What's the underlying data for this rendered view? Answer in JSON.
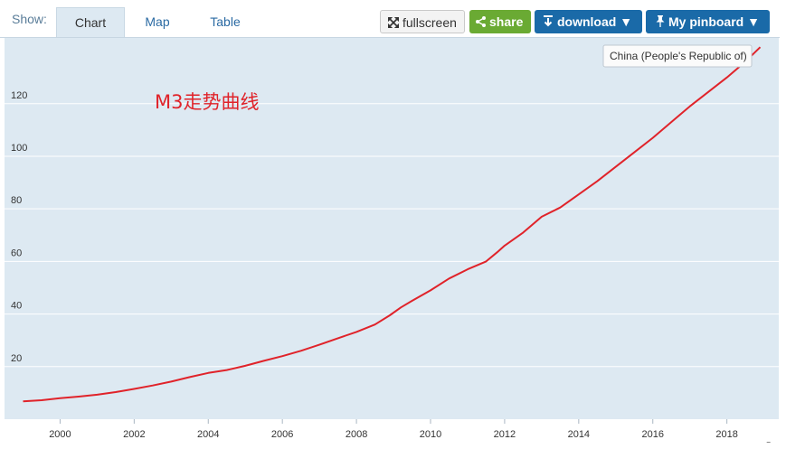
{
  "toolbar": {
    "show_label": "Show:",
    "tabs": [
      {
        "label": "Chart",
        "active": true
      },
      {
        "label": "Map",
        "active": false
      },
      {
        "label": "Table",
        "active": false
      }
    ],
    "fullscreen_label": "fullscreen",
    "share_label": "share",
    "download_label": "download",
    "pinboard_label": "My pinboard",
    "icons": {
      "fullscreen": "expand-arrows-icon",
      "share": "share-icon",
      "download": "download-arrow-icon",
      "pinboard": "pin-icon",
      "dropdown": "caret-down-icon"
    },
    "colors": {
      "share": "#6aaa33",
      "download": "#1a6aa8",
      "pinboard": "#1a6aa8"
    }
  },
  "chart_data": {
    "type": "line",
    "annotation": "M3走势曲线",
    "legend_tooltip": "China (People's Republic of)",
    "xlim": [
      1998.5,
      2019.4
    ],
    "ylim": [
      0,
      145
    ],
    "x_ticks": [
      "2000",
      "2002",
      "2004",
      "2006",
      "2008",
      "2010",
      "2012",
      "2014",
      "2016",
      "2018"
    ],
    "y_ticks": [
      "20",
      "40",
      "60",
      "80",
      "100",
      "120"
    ],
    "grid": true,
    "background": "#dde9f2",
    "series": [
      {
        "color": "#e0232a",
        "x": [
          1999.0,
          1999.5,
          2000.0,
          2000.5,
          2001.0,
          2001.5,
          2002.0,
          2002.5,
          2003.0,
          2003.5,
          2004.0,
          2004.5,
          2005.0,
          2005.5,
          2006.0,
          2006.5,
          2007.0,
          2007.5,
          2008.0,
          2008.5,
          2008.9,
          2009.2,
          2009.5,
          2010.0,
          2010.5,
          2011.0,
          2011.5,
          2011.8,
          2012.0,
          2012.5,
          2013.0,
          2013.5,
          2014.0,
          2014.5,
          2015.0,
          2015.5,
          2016.0,
          2016.5,
          2017.0,
          2017.5,
          2018.0,
          2018.5,
          2018.9
        ],
        "y": [
          6.8,
          7.2,
          8.0,
          8.6,
          9.3,
          10.3,
          11.5,
          12.8,
          14.3,
          16.0,
          17.6,
          18.7,
          20.3,
          22.2,
          24.0,
          26.0,
          28.3,
          30.8,
          33.2,
          36.0,
          39.5,
          42.5,
          45.0,
          49.0,
          53.5,
          57.0,
          60.0,
          63.5,
          66.0,
          71.0,
          77.0,
          80.5,
          85.5,
          90.5,
          96.0,
          101.5,
          107.0,
          113.0,
          119.0,
          124.5,
          130.0,
          136.0,
          141.5
        ]
      }
    ]
  }
}
